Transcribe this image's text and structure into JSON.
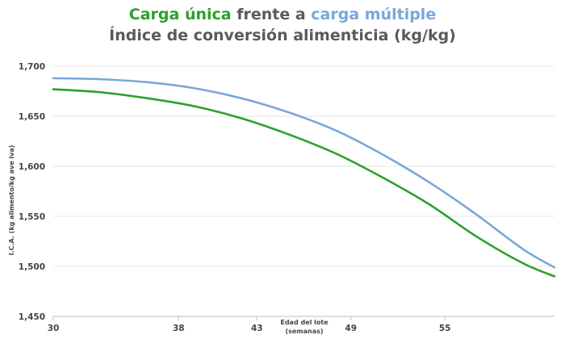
{
  "chart_data": {
    "type": "line",
    "title": {
      "part1": "Carga única",
      "part2": " frente a ",
      "part3": "carga múltiple"
    },
    "subtitle": "Índice de conversión alimenticia (kg/kg)",
    "xlabel": [
      "Edad del lote",
      "(semanas)"
    ],
    "ylabel": "I.C.A. (kg alimento/kg ave iva)",
    "xlim": [
      30,
      62
    ],
    "ylim": [
      1.45,
      1.7
    ],
    "x_ticks": [
      30,
      38,
      43,
      49,
      55
    ],
    "x_tick_labels": [
      "30",
      "38",
      "43",
      "49",
      "55"
    ],
    "y_ticks": [
      1.45,
      1.5,
      1.55,
      1.6,
      1.65,
      1.7
    ],
    "y_tick_labels": [
      "1,450",
      "1,500",
      "1,550",
      "1,600",
      "1,650",
      "1,700"
    ],
    "grid": true,
    "x": [
      30,
      33,
      36,
      39,
      42,
      45,
      48,
      51,
      54,
      57,
      60,
      62
    ],
    "series": [
      {
        "color": "#7aa7d9",
        "values": [
          1.688,
          1.687,
          1.684,
          1.678,
          1.668,
          1.654,
          1.636,
          1.612,
          1.584,
          1.552,
          1.517,
          1.499
        ]
      },
      {
        "color": "#2ca02c",
        "values": [
          1.677,
          1.674,
          1.668,
          1.66,
          1.648,
          1.632,
          1.613,
          1.589,
          1.562,
          1.53,
          1.503,
          1.49
        ]
      }
    ],
    "colors": {
      "green": "#2ca02c",
      "blue": "#7aa7d9",
      "title_grey": "#5a5a5a"
    }
  }
}
